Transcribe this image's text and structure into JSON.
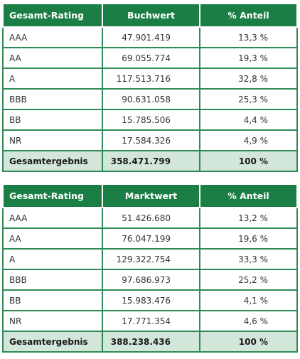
{
  "table1": {
    "headers": [
      "Gesamt-Rating",
      "Buchwert",
      "% Anteil"
    ],
    "rows": [
      {
        "rating": "AAA",
        "value": "47.901.419",
        "share": "13,3 %"
      },
      {
        "rating": "AA",
        "value": "69.055.774",
        "share": "19,3 %"
      },
      {
        "rating": "A",
        "value": "117.513.716",
        "share": "32,8 %"
      },
      {
        "rating": "BBB",
        "value": "90.631.058",
        "share": "25,3 %"
      },
      {
        "rating": "BB",
        "value": "15.785.506",
        "share": "4,4 %"
      },
      {
        "rating": "NR",
        "value": "17.584.326",
        "share": "4,9 %"
      }
    ],
    "total": {
      "rating": "Gesamtergebnis",
      "value": "358.471.799",
      "share": "100 %"
    }
  },
  "table2": {
    "headers": [
      "Gesamt-Rating",
      "Marktwert",
      "% Anteil"
    ],
    "rows": [
      {
        "rating": "AAA",
        "value": "51.426.680",
        "share": "13,2 %"
      },
      {
        "rating": "AA",
        "value": "76.047.199",
        "share": "19,6 %"
      },
      {
        "rating": "A",
        "value": "129.322.754",
        "share": "33,3 %"
      },
      {
        "rating": "BBB",
        "value": "97.686.973",
        "share": "25,2 %"
      },
      {
        "rating": "BB",
        "value": "15.983.476",
        "share": "4,1 %"
      },
      {
        "rating": "NR",
        "value": "17.771.354",
        "share": "4,6 %"
      }
    ],
    "total": {
      "rating": "Gesamtergebnis",
      "value": "388.238.436",
      "share": "100 %"
    }
  }
}
